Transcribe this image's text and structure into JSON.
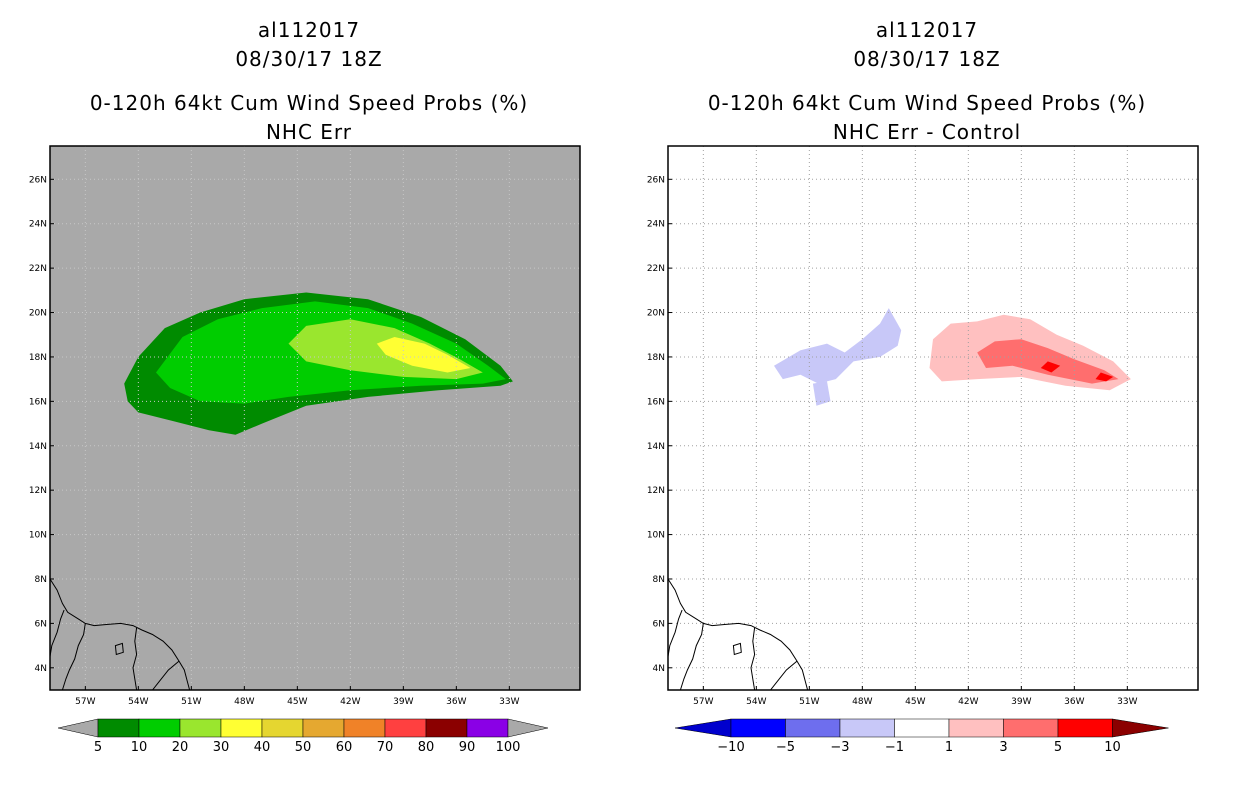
{
  "chart_data": [
    {
      "type": "heatmap",
      "storm_id": "al112017",
      "datetime": "08/30/17 18Z",
      "title": "0-120h 64kt Cum Wind Speed Probs (%)",
      "subtitle": "NHC Err",
      "xlabel": "",
      "ylabel": "",
      "xlim": [
        -59,
        -29
      ],
      "ylim": [
        3,
        27.5
      ],
      "x_ticks": [
        "57W",
        "54W",
        "51W",
        "48W",
        "45W",
        "42W",
        "39W",
        "36W",
        "33W"
      ],
      "y_ticks": [
        "4N",
        "6N",
        "8N",
        "10N",
        "12N",
        "14N",
        "16N",
        "18N",
        "20N",
        "22N",
        "24N",
        "26N"
      ],
      "background_color": "#a9a9a9",
      "grid": true,
      "colorbar_levels": [
        "5",
        "10",
        "20",
        "30",
        "40",
        "50",
        "60",
        "70",
        "80",
        "90",
        "100"
      ],
      "colorbar_colors": [
        "#008b00",
        "#00cd00",
        "#9ae62e",
        "#ffff33",
        "#e5d630",
        "#e5a830",
        "#f08228",
        "#ff4040",
        "#8b0000",
        "#8a00e6"
      ],
      "contours": [
        {
          "level": 5,
          "color": "#008b00",
          "points": [
            [
              -54.8,
              16.8
            ],
            [
              -54.0,
              18.0
            ],
            [
              -52.5,
              19.3
            ],
            [
              -50.5,
              20.0
            ],
            [
              -48.0,
              20.6
            ],
            [
              -44.5,
              20.9
            ],
            [
              -41.0,
              20.6
            ],
            [
              -38.0,
              19.8
            ],
            [
              -35.5,
              18.8
            ],
            [
              -33.5,
              17.6
            ],
            [
              -32.8,
              16.9
            ],
            [
              -33.5,
              16.7
            ],
            [
              -37.0,
              16.5
            ],
            [
              -41.0,
              16.2
            ],
            [
              -44.5,
              15.8
            ],
            [
              -47.0,
              15.0
            ],
            [
              -48.5,
              14.5
            ],
            [
              -50.0,
              14.7
            ],
            [
              -52.0,
              15.1
            ],
            [
              -54.0,
              15.5
            ],
            [
              -54.6,
              16.0
            ]
          ]
        },
        {
          "level": 10,
          "color": "#00cd00",
          "points": [
            [
              -53.0,
              17.3
            ],
            [
              -51.5,
              18.9
            ],
            [
              -49.5,
              19.7
            ],
            [
              -47.0,
              20.2
            ],
            [
              -44.0,
              20.5
            ],
            [
              -41.0,
              20.2
            ],
            [
              -38.5,
              19.5
            ],
            [
              -36.0,
              18.6
            ],
            [
              -34.2,
              17.6
            ],
            [
              -33.2,
              17.0
            ],
            [
              -34.5,
              16.8
            ],
            [
              -38.0,
              16.7
            ],
            [
              -42.0,
              16.5
            ],
            [
              -45.5,
              16.2
            ],
            [
              -48.0,
              15.9
            ],
            [
              -50.5,
              16.0
            ],
            [
              -52.2,
              16.6
            ]
          ]
        },
        {
          "level": 20,
          "color": "#9ae62e",
          "points": [
            [
              -45.5,
              18.6
            ],
            [
              -44.5,
              19.4
            ],
            [
              -42.0,
              19.7
            ],
            [
              -39.5,
              19.3
            ],
            [
              -37.5,
              18.6
            ],
            [
              -35.8,
              17.9
            ],
            [
              -34.5,
              17.3
            ],
            [
              -36.0,
              17.0
            ],
            [
              -39.0,
              17.1
            ],
            [
              -42.0,
              17.4
            ],
            [
              -44.5,
              17.8
            ]
          ]
        },
        {
          "level": 30,
          "color": "#ffff33",
          "points": [
            [
              -40.5,
              18.6
            ],
            [
              -39.5,
              18.9
            ],
            [
              -37.8,
              18.6
            ],
            [
              -36.5,
              18.1
            ],
            [
              -35.2,
              17.5
            ],
            [
              -36.5,
              17.3
            ],
            [
              -38.5,
              17.6
            ],
            [
              -40.0,
              18.1
            ]
          ]
        }
      ]
    },
    {
      "type": "heatmap",
      "storm_id": "al112017",
      "datetime": "08/30/17 18Z",
      "title": "0-120h 64kt Cum Wind Speed Probs (%)",
      "subtitle": "NHC Err - Control",
      "xlabel": "",
      "ylabel": "",
      "xlim": [
        -59,
        -29
      ],
      "ylim": [
        3,
        27.5
      ],
      "x_ticks": [
        "57W",
        "54W",
        "51W",
        "48W",
        "45W",
        "42W",
        "39W",
        "36W",
        "33W"
      ],
      "y_ticks": [
        "4N",
        "6N",
        "8N",
        "10N",
        "12N",
        "14N",
        "16N",
        "18N",
        "20N",
        "22N",
        "24N",
        "26N"
      ],
      "background_color": "#ffffff",
      "grid": true,
      "colorbar_levels": [
        "-10",
        "-5",
        "-3",
        "-1",
        "1",
        "3",
        "5",
        "10"
      ],
      "colorbar_colors": [
        "#0000cd",
        "#0000ff",
        "#6e6eee",
        "#c8c8f8",
        "#ffffff",
        "#ffc0c0",
        "#ff6e6e",
        "#ff0000",
        "#8b0000"
      ],
      "contours": [
        {
          "level": -1,
          "color": "#c8c8f8",
          "points": [
            [
              -53.0,
              17.6
            ],
            [
              -51.5,
              18.3
            ],
            [
              -50.0,
              18.6
            ],
            [
              -49.0,
              18.2
            ],
            [
              -48.0,
              18.8
            ],
            [
              -47.0,
              19.5
            ],
            [
              -46.5,
              20.2
            ],
            [
              -45.8,
              19.2
            ],
            [
              -46.0,
              18.5
            ],
            [
              -47.0,
              18.0
            ],
            [
              -48.5,
              17.8
            ],
            [
              -49.5,
              17.0
            ],
            [
              -50.5,
              16.8
            ],
            [
              -51.5,
              17.2
            ],
            [
              -52.5,
              17.0
            ]
          ]
        },
        {
          "level": -1,
          "color": "#c8c8f8",
          "points": [
            [
              -50.8,
              16.8
            ],
            [
              -50.0,
              16.9
            ],
            [
              -49.8,
              16.0
            ],
            [
              -50.6,
              15.8
            ]
          ]
        },
        {
          "level": 1,
          "color": "#ffc0c0",
          "points": [
            [
              -44.0,
              18.8
            ],
            [
              -43.0,
              19.5
            ],
            [
              -41.5,
              19.6
            ],
            [
              -40.0,
              19.9
            ],
            [
              -38.5,
              19.7
            ],
            [
              -37.0,
              19.0
            ],
            [
              -35.5,
              18.5
            ],
            [
              -33.8,
              17.8
            ],
            [
              -32.8,
              17.0
            ],
            [
              -34.0,
              16.5
            ],
            [
              -36.5,
              16.7
            ],
            [
              -39.0,
              17.1
            ],
            [
              -41.5,
              17.0
            ],
            [
              -43.5,
              16.9
            ],
            [
              -44.2,
              17.5
            ]
          ]
        },
        {
          "level": 3,
          "color": "#ff6e6e",
          "points": [
            [
              -41.5,
              18.2
            ],
            [
              -40.5,
              18.7
            ],
            [
              -39.0,
              18.8
            ],
            [
              -37.5,
              18.4
            ],
            [
              -36.0,
              17.9
            ],
            [
              -34.3,
              17.4
            ],
            [
              -33.5,
              17.0
            ],
            [
              -35.0,
              16.8
            ],
            [
              -37.5,
              17.2
            ],
            [
              -39.5,
              17.6
            ],
            [
              -41.0,
              17.5
            ]
          ]
        },
        {
          "level": 5,
          "color": "#ff0000",
          "points": [
            [
              -37.5,
              17.8
            ],
            [
              -36.8,
              17.6
            ],
            [
              -37.3,
              17.3
            ],
            [
              -37.9,
              17.5
            ]
          ]
        },
        {
          "level": 5,
          "color": "#ff0000",
          "points": [
            [
              -34.5,
              17.3
            ],
            [
              -33.8,
              17.1
            ],
            [
              -34.2,
              16.9
            ],
            [
              -34.8,
              17.0
            ]
          ]
        }
      ]
    }
  ]
}
